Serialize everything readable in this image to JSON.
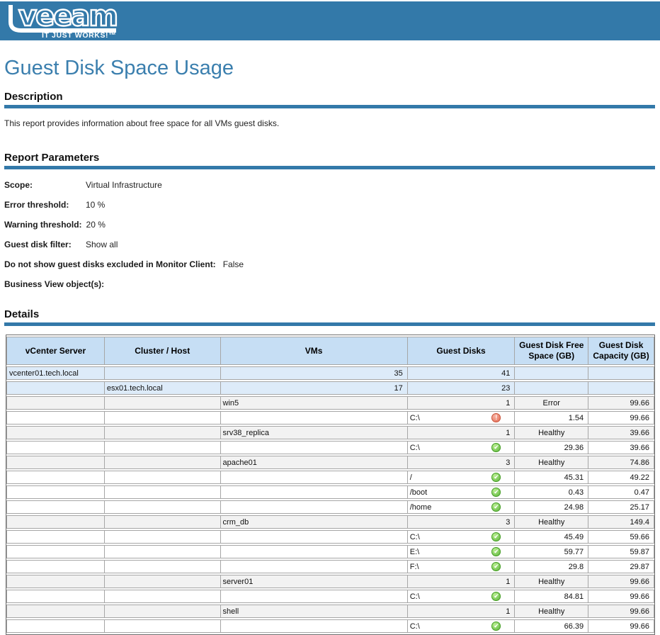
{
  "banner": {
    "logo_text": "veeam",
    "tagline": "IT JUST WORKS!™",
    "bg_color": "#3379A9"
  },
  "page": {
    "title": "Guest Disk Space Usage",
    "title_color": "#3B7FAE",
    "accent_color": "#3379A9"
  },
  "icons": {
    "ok": "✔",
    "error": "!"
  },
  "status_colors": {
    "ok": "#52AF31",
    "error": "#E0654D"
  },
  "sections": {
    "description": {
      "heading": "Description",
      "text": "This report provides information about free space for all VMs guest disks."
    },
    "parameters": {
      "heading": "Report Parameters",
      "items": [
        {
          "label": "Scope:",
          "value": "Virtual Infrastructure"
        },
        {
          "label": "Error threshold:",
          "value": "10 %"
        },
        {
          "label": "Warning threshold:",
          "value": "20 %"
        },
        {
          "label": "Guest disk filter:",
          "value": "Show all"
        },
        {
          "label": "Do not show guest disks excluded in Monitor Client:",
          "value": "False"
        },
        {
          "label": "Business View object(s):",
          "value": ""
        }
      ]
    },
    "details": {
      "heading": "Details",
      "table": {
        "columns": [
          "vCenter Server",
          "Cluster / Host",
          "VMs",
          "Guest Disks",
          "Guest Disk Free Space (GB)",
          "Guest Disk Capacity (GB)"
        ],
        "rows": [
          {
            "type": "vcenter",
            "vcenter": "vcenter01.tech.local",
            "vms": "35",
            "disks": "41"
          },
          {
            "type": "host",
            "host": "esx01.tech.local",
            "vms": "17",
            "disks": "23"
          },
          {
            "type": "vm",
            "name": "win5",
            "disks": "1",
            "status": "Error",
            "capacity": "99.66"
          },
          {
            "type": "disk",
            "name": "C:\\",
            "icon": "error",
            "free": "1.54",
            "capacity": "99.66"
          },
          {
            "type": "vm",
            "name": "srv38_replica",
            "disks": "1",
            "status": "Healthy",
            "capacity": "39.66"
          },
          {
            "type": "disk",
            "name": "C:\\",
            "icon": "ok",
            "free": "29.36",
            "capacity": "39.66"
          },
          {
            "type": "vm",
            "name": "apache01",
            "disks": "3",
            "status": "Healthy",
            "capacity": "74.86"
          },
          {
            "type": "disk",
            "name": "/",
            "icon": "ok",
            "free": "45.31",
            "capacity": "49.22"
          },
          {
            "type": "disk",
            "name": "/boot",
            "icon": "ok",
            "free": "0.43",
            "capacity": "0.47"
          },
          {
            "type": "disk",
            "name": "/home",
            "icon": "ok",
            "free": "24.98",
            "capacity": "25.17"
          },
          {
            "type": "vm",
            "name": "crm_db",
            "disks": "3",
            "status": "Healthy",
            "capacity": "149.4"
          },
          {
            "type": "disk",
            "name": "C:\\",
            "icon": "ok",
            "free": "45.49",
            "capacity": "59.66"
          },
          {
            "type": "disk",
            "name": "E:\\",
            "icon": "ok",
            "free": "59.77",
            "capacity": "59.87"
          },
          {
            "type": "disk",
            "name": "F:\\",
            "icon": "ok",
            "free": "29.8",
            "capacity": "29.87"
          },
          {
            "type": "vm",
            "name": "server01",
            "disks": "1",
            "status": "Healthy",
            "capacity": "99.66"
          },
          {
            "type": "disk",
            "name": "C:\\",
            "icon": "ok",
            "free": "84.81",
            "capacity": "99.66"
          },
          {
            "type": "vm",
            "name": "shell",
            "disks": "1",
            "status": "Healthy",
            "capacity": "99.66"
          },
          {
            "type": "disk",
            "name": "C:\\",
            "icon": "ok",
            "free": "66.39",
            "capacity": "99.66"
          }
        ]
      }
    }
  }
}
